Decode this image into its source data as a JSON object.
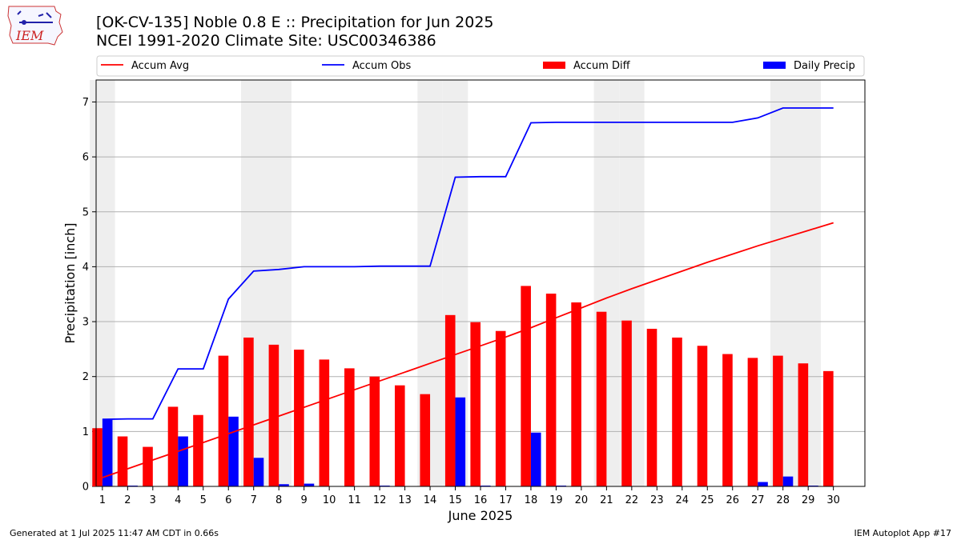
{
  "header": {
    "title_line1": "[OK-CV-135] Noble 0.8 E :: Precipitation for Jun 2025",
    "title_line2": "NCEI 1991-2020 Climate Site: USC00346386",
    "logo_text": "IEM"
  },
  "footer": {
    "generated": "Generated at 1 Jul 2025 11:47 AM CDT in 0.66s",
    "app": "IEM Autoplot App #17"
  },
  "chart_data": {
    "type": "bar",
    "xlabel": "June 2025",
    "ylabel": "Precipitation [inch]",
    "ylim": [
      0,
      7.4
    ],
    "yticks": [
      0,
      1,
      2,
      3,
      4,
      5,
      6,
      7
    ],
    "grid": true,
    "legend_position": "top",
    "weekend_shading_color": "#eeeeee",
    "categories": [
      "1",
      "2",
      "3",
      "4",
      "5",
      "6",
      "7",
      "8",
      "9",
      "10",
      "11",
      "12",
      "13",
      "14",
      "15",
      "16",
      "17",
      "18",
      "19",
      "20",
      "21",
      "22",
      "23",
      "24",
      "25",
      "26",
      "27",
      "28",
      "29",
      "30"
    ],
    "shaded_days": [
      1,
      7,
      8,
      14,
      15,
      21,
      22,
      28,
      29
    ],
    "series": [
      {
        "name": "Accum Avg",
        "kind": "line",
        "color": "#ff0000",
        "values": [
          0.16,
          0.32,
          0.48,
          0.64,
          0.8,
          0.96,
          1.12,
          1.28,
          1.44,
          1.6,
          1.76,
          1.92,
          2.08,
          2.24,
          2.4,
          2.56,
          2.72,
          2.89,
          3.07,
          3.25,
          3.43,
          3.6,
          3.76,
          3.92,
          4.08,
          4.23,
          4.38,
          4.52,
          4.66,
          4.8
        ]
      },
      {
        "name": "Accum Obs",
        "kind": "line",
        "color": "#0000ff",
        "values": [
          1.22,
          1.23,
          1.23,
          2.14,
          2.14,
          3.41,
          3.92,
          3.95,
          4.0,
          4.0,
          4.0,
          4.01,
          4.01,
          4.01,
          5.63,
          5.64,
          5.64,
          6.62,
          6.63,
          6.63,
          6.63,
          6.63,
          6.63,
          6.63,
          6.63,
          6.63,
          6.71,
          6.89,
          6.89,
          6.89
        ]
      },
      {
        "name": "Accum Diff",
        "kind": "bar",
        "color": "#ff0000",
        "values": [
          1.06,
          0.91,
          0.72,
          1.45,
          1.3,
          2.38,
          2.71,
          2.58,
          2.49,
          2.31,
          2.15,
          2.0,
          1.84,
          1.68,
          3.12,
          2.99,
          2.83,
          3.65,
          3.51,
          3.35,
          3.18,
          3.02,
          2.87,
          2.71,
          2.56,
          2.41,
          2.34,
          2.38,
          2.24,
          2.1
        ]
      },
      {
        "name": "Daily Precip",
        "kind": "bar",
        "color": "#0000ff",
        "values": [
          1.22,
          0.01,
          0,
          0.91,
          0,
          1.27,
          0.52,
          0.04,
          0.05,
          0,
          0,
          0.01,
          0,
          0,
          1.62,
          0.01,
          0,
          0.98,
          0.01,
          0,
          0,
          0,
          0,
          0,
          0,
          0,
          0.08,
          0.18,
          0.01,
          0
        ]
      }
    ]
  }
}
